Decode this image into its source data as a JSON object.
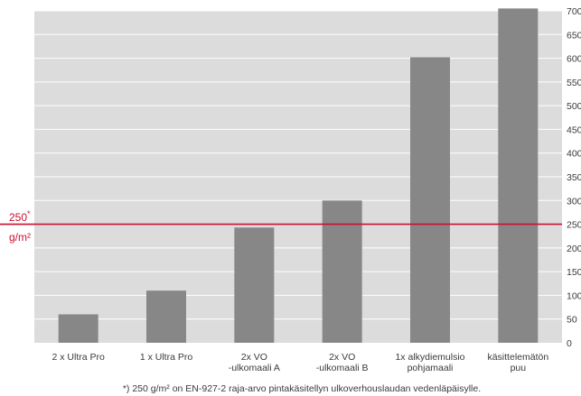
{
  "chart_data": {
    "type": "bar",
    "categories": [
      [
        "2 x Ultra Pro"
      ],
      [
        "1 x Ultra Pro"
      ],
      [
        "2x VO",
        "-ulkomaali A"
      ],
      [
        "2x VO",
        "-ulkomaali B"
      ],
      [
        "1x alkydiemulsio",
        "pohjamaali"
      ],
      [
        "käsittelemätön",
        "puu"
      ]
    ],
    "values": [
      60,
      110,
      243,
      300,
      602,
      705
    ],
    "ylim": [
      0,
      700
    ],
    "yticks": [
      0,
      50,
      100,
      150,
      200,
      250,
      300,
      350,
      400,
      450,
      500,
      550,
      600,
      650,
      700
    ],
    "grid": true,
    "reference_line": {
      "value": 250,
      "label_value": "250",
      "label_mark": "*",
      "label_unit": "g/m²"
    },
    "footnote": "*) 250 g/m² on EN-927-2 raja-arvo pintakäsitellyn ulkoverhouslaudan vedenläpäisylle.",
    "colors": {
      "plot_background": "#dcdcdc",
      "bar": "#878787",
      "gridline": "#ffffff",
      "reference_line": "#c8102e",
      "text": "#3a3a3a"
    }
  }
}
